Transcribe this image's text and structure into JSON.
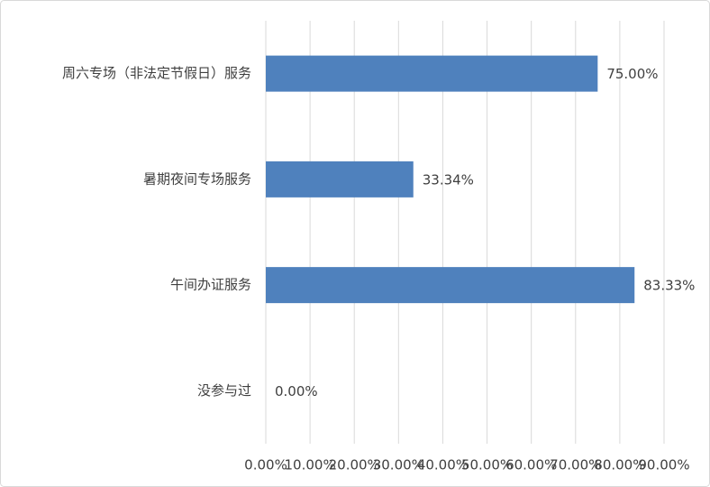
{
  "chart_data": {
    "type": "hbar",
    "categories": [
      "周六专场（非法定节假日）服务",
      "暑期夜间专场服务",
      "午间办证服务",
      "没参与过"
    ],
    "values": [
      75,
      33.34,
      83.33,
      0
    ],
    "value_labels": [
      "75.00%",
      "33.34%",
      "83.33%",
      "0.00%"
    ],
    "color": "#4f81bd",
    "xlim": [
      0,
      90
    ],
    "xticks": [
      {
        "value": 0,
        "label": "0.00%"
      },
      {
        "value": 10,
        "label": "10.00%"
      },
      {
        "value": 20,
        "label": "20.00%"
      },
      {
        "value": 30,
        "label": "30.00%"
      },
      {
        "value": 40,
        "label": "40.00%"
      },
      {
        "value": 50,
        "label": "50.00%"
      },
      {
        "value": 60,
        "label": "60.00%"
      },
      {
        "value": 70,
        "label": "70.00%"
      },
      {
        "value": 80,
        "label": "80.00%"
      },
      {
        "value": 90,
        "label": "90.00%"
      }
    ],
    "grid": true
  }
}
